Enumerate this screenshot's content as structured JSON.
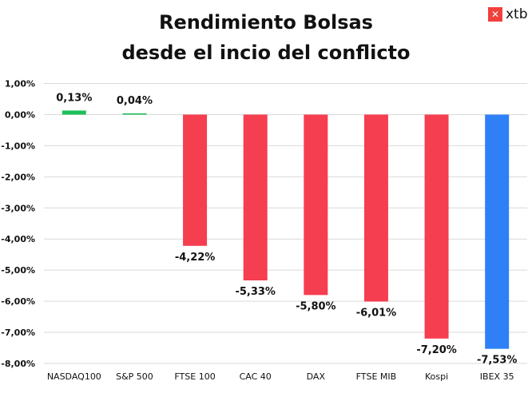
{
  "chart_data": {
    "type": "bar",
    "title": [
      "Rendimiento Bolsas",
      "desde el incio del conflicto"
    ],
    "categories": [
      "NASDAQ100",
      "S&P 500",
      "FTSE 100",
      "CAC 40",
      "DAX",
      "FTSE MIB",
      "Kospi",
      "IBEX 35"
    ],
    "values": [
      0.13,
      0.04,
      -4.22,
      -5.33,
      -5.8,
      -6.01,
      -7.2,
      -7.53
    ],
    "data_labels": [
      "0,13%",
      "0,04%",
      "-4,22%",
      "-5,33%",
      "-5,80%",
      "-6,01%",
      "-7,20%",
      "-7,53%"
    ],
    "ylim": [
      -8,
      1
    ],
    "yticks": [
      1,
      0,
      -1,
      -2,
      -3,
      -4,
      -5,
      -6,
      -7,
      -8
    ],
    "ytick_labels": [
      "1,00%",
      "0,00%",
      "-1,00%",
      "-2,00%",
      "-3,00%",
      "-4,00%",
      "-5,00%",
      "-6,00%",
      "-7,00%",
      "-8,00%"
    ],
    "grid": true,
    "colors": {
      "positive": "#1dbf5a",
      "negative": "#f53e4f",
      "highlight": "#2f80f7"
    },
    "highlight_category": "IBEX 35"
  },
  "logo": {
    "text": "xtb"
  }
}
